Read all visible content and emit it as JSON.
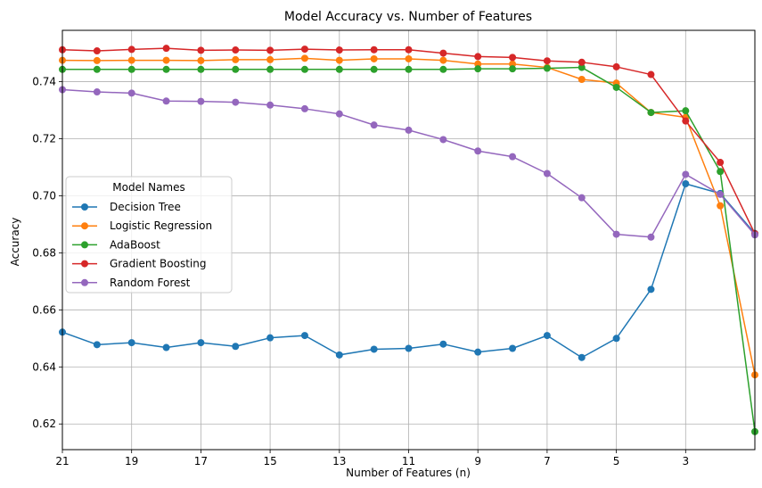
{
  "chart_data": {
    "type": "line",
    "title": "Model Accuracy vs. Number of Features",
    "xlabel": "Number of Features (n)",
    "ylabel": "Accuracy",
    "xlim": [
      21,
      1
    ],
    "ylim": [
      0.611,
      0.758
    ],
    "x_ticks": [
      21,
      19,
      17,
      15,
      13,
      11,
      9,
      7,
      5,
      3
    ],
    "y_ticks": [
      0.62,
      0.64,
      0.66,
      0.68,
      0.7,
      0.72,
      0.74
    ],
    "y_tick_labels": [
      "0.62",
      "0.64",
      "0.66",
      "0.68",
      "0.70",
      "0.72",
      "0.74"
    ],
    "grid": true,
    "legend": {
      "title": "Model Names",
      "position": "center-left"
    },
    "x": [
      21,
      20,
      19,
      18,
      17,
      16,
      15,
      14,
      13,
      12,
      11,
      10,
      9,
      8,
      7,
      6,
      5,
      4,
      3,
      2,
      1
    ],
    "series": [
      {
        "name": "Decision Tree",
        "color": "#1f77b4",
        "values": [
          0.6522,
          0.6478,
          0.6485,
          0.6468,
          0.6485,
          0.6472,
          0.6502,
          0.651,
          0.6442,
          0.6462,
          0.6465,
          0.648,
          0.6452,
          0.6465,
          0.651,
          0.6433,
          0.65,
          0.6672,
          0.7042,
          0.7008,
          0.6868
        ]
      },
      {
        "name": "Logistic Regression",
        "color": "#ff7f0e",
        "values": [
          0.7475,
          0.7474,
          0.7475,
          0.7475,
          0.7474,
          0.7477,
          0.7477,
          0.7482,
          0.7475,
          0.748,
          0.748,
          0.7475,
          0.7462,
          0.7462,
          0.745,
          0.7408,
          0.7395,
          0.7292,
          0.7275,
          0.6965,
          0.6372
        ]
      },
      {
        "name": "AdaBoost",
        "color": "#2ca02c",
        "values": [
          0.7443,
          0.7443,
          0.7443,
          0.7443,
          0.7443,
          0.7443,
          0.7443,
          0.7443,
          0.7443,
          0.7443,
          0.7443,
          0.7443,
          0.7445,
          0.7445,
          0.7447,
          0.745,
          0.738,
          0.7292,
          0.7298,
          0.7085,
          0.6173
        ]
      },
      {
        "name": "Gradient Boosting",
        "color": "#d62728",
        "values": [
          0.7512,
          0.7508,
          0.7513,
          0.7517,
          0.751,
          0.7511,
          0.751,
          0.7514,
          0.7511,
          0.7512,
          0.7512,
          0.75,
          0.7488,
          0.7485,
          0.7473,
          0.7468,
          0.7452,
          0.7425,
          0.7262,
          0.7117,
          0.6867
        ]
      },
      {
        "name": "Random Forest",
        "color": "#9467bd",
        "values": [
          0.7372,
          0.7364,
          0.736,
          0.7332,
          0.7331,
          0.7328,
          0.7318,
          0.7305,
          0.7287,
          0.7248,
          0.723,
          0.7197,
          0.7157,
          0.7137,
          0.7078,
          0.6993,
          0.6865,
          0.6855,
          0.7075,
          0.7005,
          0.6863
        ]
      }
    ]
  }
}
